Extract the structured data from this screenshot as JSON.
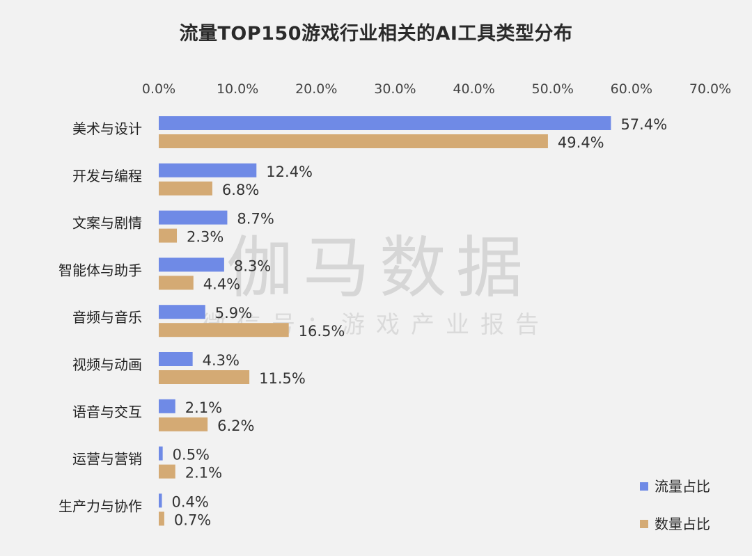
{
  "watermark": {
    "main": "伽马数据",
    "sub": "微信号：游戏产业报告"
  },
  "chart_data": {
    "type": "bar",
    "orientation": "horizontal",
    "title": "流量TOP150游戏行业相关的AI工具类型分布",
    "xlim": [
      0,
      70
    ],
    "x_ticks": [
      "0.0%",
      "10.0%",
      "20.0%",
      "30.0%",
      "40.0%",
      "50.0%",
      "60.0%",
      "70.0%"
    ],
    "x_tick_values": [
      0,
      10,
      20,
      30,
      40,
      50,
      60,
      70
    ],
    "x_axis_position": "top",
    "grid": false,
    "legend_position": "bottom-right",
    "categories": [
      "美术与设计",
      "开发与编程",
      "文案与剧情",
      "智能体与助手",
      "音频与音乐",
      "视频与动画",
      "语音与交互",
      "运营与营销",
      "生产力与协作"
    ],
    "series": [
      {
        "name": "流量占比",
        "color": "#6f8ae6",
        "values": [
          57.4,
          12.4,
          8.7,
          8.3,
          5.9,
          4.3,
          2.1,
          0.5,
          0.4
        ],
        "labels": [
          "57.4%",
          "12.4%",
          "8.7%",
          "8.3%",
          "5.9%",
          "4.3%",
          "2.1%",
          "0.5%",
          "0.4%"
        ]
      },
      {
        "name": "数量占比",
        "color": "#d4aa74",
        "values": [
          49.4,
          6.8,
          2.3,
          4.4,
          16.5,
          11.5,
          6.2,
          2.1,
          0.7
        ],
        "labels": [
          "49.4%",
          "6.8%",
          "2.3%",
          "4.4%",
          "16.5%",
          "11.5%",
          "6.2%",
          "2.1%",
          "0.7%"
        ]
      }
    ]
  }
}
